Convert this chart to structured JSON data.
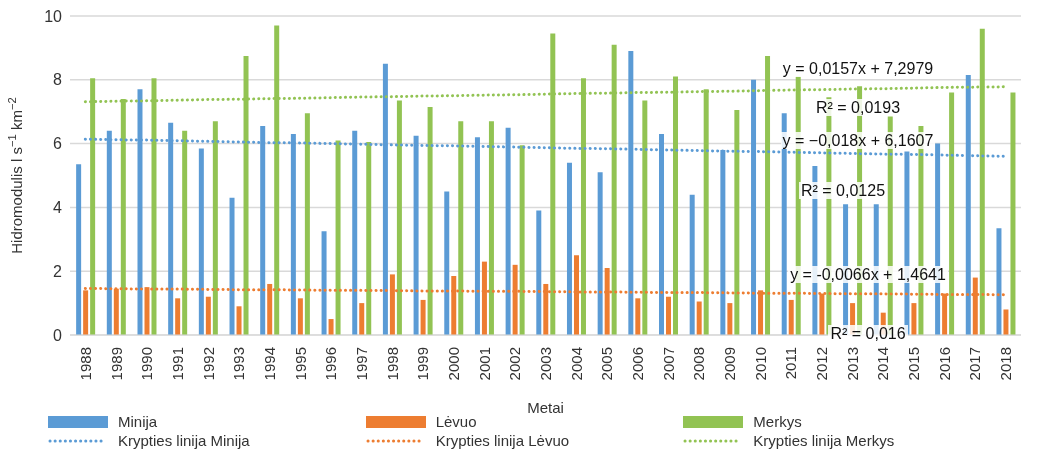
{
  "chart_data": {
    "type": "bar",
    "xlabel": "Metai",
    "ylabel": "Hidromodulis l s$^{−1}$ km$^{−2}$",
    "categories": [
      "1988",
      "1989",
      "1990",
      "1991",
      "1992",
      "1993",
      "1994",
      "1995",
      "1996",
      "1997",
      "1998",
      "1999",
      "2000",
      "2001",
      "2002",
      "2003",
      "2004",
      "2005",
      "2006",
      "2007",
      "2008",
      "2009",
      "2010",
      "2011",
      "2012",
      "2013",
      "2014",
      "2015",
      "2016",
      "2017",
      "2018"
    ],
    "series": [
      {
        "name": "Minija",
        "color": "#5b9bd5",
        "values": [
          5.35,
          6.4,
          7.7,
          6.65,
          5.85,
          4.3,
          6.55,
          6.3,
          3.25,
          6.4,
          8.5,
          6.25,
          4.5,
          6.2,
          6.5,
          3.9,
          5.4,
          5.1,
          8.9,
          6.3,
          4.4,
          5.8,
          8.0,
          6.95,
          5.3,
          4.1,
          4.1,
          5.75,
          6.0,
          8.15,
          3.35
        ]
      },
      {
        "name": "Lėvuo",
        "color": "#ed7d31",
        "values": [
          1.4,
          1.45,
          1.5,
          1.15,
          1.2,
          0.9,
          1.6,
          1.15,
          0.5,
          1.0,
          1.9,
          1.1,
          1.85,
          2.3,
          2.2,
          1.6,
          2.5,
          2.1,
          1.15,
          1.2,
          1.05,
          1.0,
          1.4,
          1.1,
          1.3,
          1.0,
          0.7,
          1.0,
          1.3,
          1.8,
          0.8
        ]
      },
      {
        "name": "Merkys",
        "color": "#92c353",
        "values": [
          8.05,
          7.4,
          8.05,
          6.4,
          6.7,
          8.75,
          9.7,
          6.95,
          6.1,
          6.05,
          7.35,
          7.15,
          6.7,
          6.7,
          5.95,
          9.45,
          8.05,
          9.1,
          7.35,
          8.1,
          7.7,
          7.05,
          8.75,
          8.1,
          7.45,
          7.8,
          6.85,
          6.55,
          7.6,
          9.6,
          7.6
        ]
      },
      {
        "name": "Krypties linija Minija",
        "type": "line",
        "line_style": "dotted",
        "color": "#5b9bd5",
        "values": [
          6.14,
          6.12,
          6.11,
          6.09,
          6.07,
          6.05,
          6.03,
          6.02,
          6.0,
          5.98,
          5.96,
          5.94,
          5.93,
          5.91,
          5.89,
          5.87,
          5.85,
          5.84,
          5.82,
          5.8,
          5.78,
          5.76,
          5.75,
          5.73,
          5.71,
          5.69,
          5.67,
          5.66,
          5.64,
          5.62,
          5.6
        ]
      },
      {
        "name": "Krypties linija Lėvuo",
        "type": "line",
        "line_style": "dotted",
        "color": "#ed7d31",
        "values": [
          1.46,
          1.45,
          1.44,
          1.44,
          1.43,
          1.42,
          1.42,
          1.41,
          1.4,
          1.4,
          1.39,
          1.38,
          1.38,
          1.37,
          1.37,
          1.36,
          1.35,
          1.35,
          1.34,
          1.33,
          1.33,
          1.32,
          1.31,
          1.31,
          1.3,
          1.29,
          1.29,
          1.28,
          1.27,
          1.27,
          1.26
        ]
      },
      {
        "name": "Krypties linija Merkys",
        "type": "line",
        "line_style": "dotted",
        "color": "#92c353",
        "values": [
          7.31,
          7.33,
          7.34,
          7.36,
          7.38,
          7.39,
          7.41,
          7.42,
          7.44,
          7.46,
          7.47,
          7.49,
          7.5,
          7.52,
          7.53,
          7.55,
          7.57,
          7.58,
          7.6,
          7.61,
          7.63,
          7.64,
          7.66,
          7.68,
          7.69,
          7.71,
          7.72,
          7.74,
          7.76,
          7.77,
          7.78
        ]
      }
    ],
    "annotations": [
      "y = 0,0157x + 7,2979",
      "R² = 0,0193",
      "y = −0,018x + 6,1607",
      "R² = 0,0125",
      "y = -0,0066x + 1,4641",
      "R² = 0,016"
    ],
    "ylim": [
      0,
      10
    ],
    "yticks": [
      0,
      2,
      4,
      6,
      8,
      10
    ],
    "grid": "y",
    "legend": "bottom"
  }
}
